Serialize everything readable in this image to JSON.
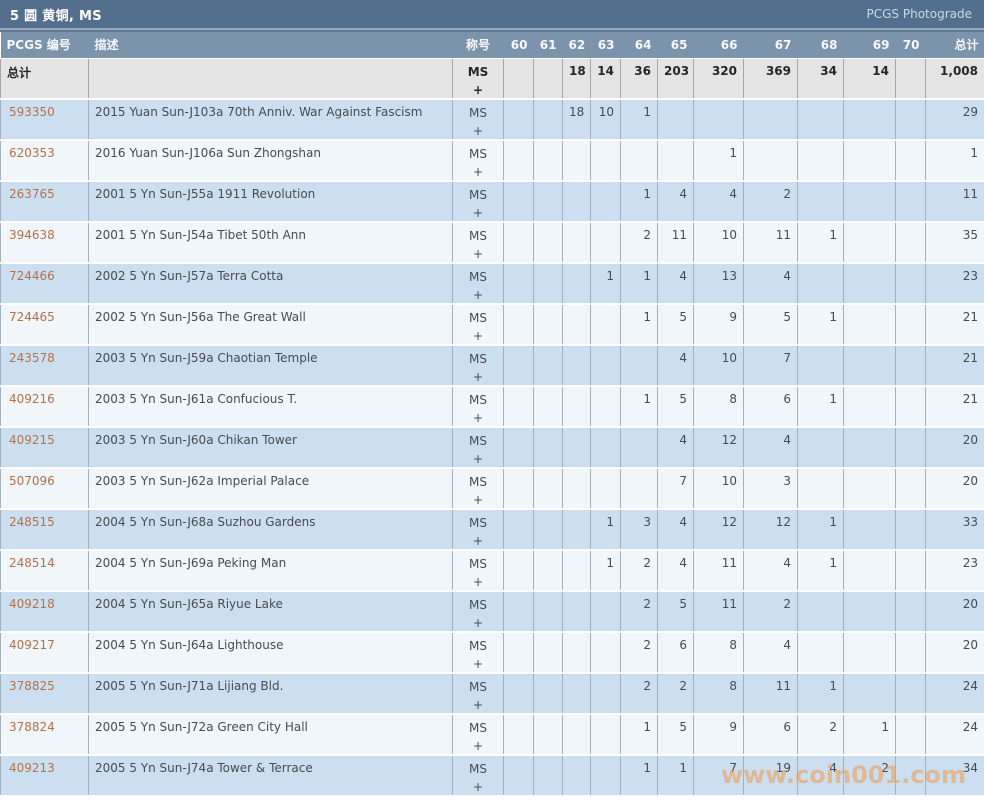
{
  "title_bar": {
    "title": "5 圆 黄铜, MS",
    "photograde_label": "PCGS Photograde"
  },
  "table": {
    "columns": {
      "number": "PCGS 编号",
      "description": "描述",
      "designation": "称号",
      "grades": [
        "60",
        "61",
        "62",
        "63",
        "64",
        "65",
        "66",
        "67",
        "68",
        "69",
        "70"
      ],
      "total": "总计"
    },
    "totals_row": {
      "label": "总计",
      "designation": "MS",
      "plus": "+",
      "grades": [
        "",
        "",
        "18",
        "14",
        "36",
        "203",
        "320",
        "369",
        "34",
        "14",
        ""
      ],
      "total": "1,008"
    },
    "rows": [
      {
        "number": "593350",
        "description": "2015 Yuan Sun-J103a 70th Anniv. War Against Fascism",
        "designation": "MS",
        "plus": "+",
        "grades": [
          "",
          "",
          "18",
          "10",
          "1",
          "",
          "",
          "",
          "",
          "",
          ""
        ],
        "total": "29"
      },
      {
        "number": "620353",
        "description": "2016 Yuan Sun-J106a Sun Zhongshan",
        "designation": "MS",
        "plus": "+",
        "grades": [
          "",
          "",
          "",
          "",
          "",
          "",
          "1",
          "",
          "",
          "",
          ""
        ],
        "total": "1"
      },
      {
        "number": "263765",
        "description": "2001 5 Yn Sun-J55a 1911 Revolution",
        "designation": "MS",
        "plus": "+",
        "grades": [
          "",
          "",
          "",
          "",
          "1",
          "4",
          "4",
          "2",
          "",
          "",
          ""
        ],
        "total": "11"
      },
      {
        "number": "394638",
        "description": "2001 5 Yn Sun-J54a Tibet 50th Ann",
        "designation": "MS",
        "plus": "+",
        "grades": [
          "",
          "",
          "",
          "",
          "2",
          "11",
          "10",
          "11",
          "1",
          "",
          ""
        ],
        "total": "35"
      },
      {
        "number": "724466",
        "description": "2002 5 Yn Sun-J57a Terra Cotta",
        "designation": "MS",
        "plus": "+",
        "grades": [
          "",
          "",
          "",
          "1",
          "1",
          "4",
          "13",
          "4",
          "",
          "",
          ""
        ],
        "total": "23"
      },
      {
        "number": "724465",
        "description": "2002 5 Yn Sun-J56a The Great Wall",
        "designation": "MS",
        "plus": "+",
        "grades": [
          "",
          "",
          "",
          "",
          "1",
          "5",
          "9",
          "5",
          "1",
          "",
          ""
        ],
        "total": "21"
      },
      {
        "number": "243578",
        "description": "2003 5 Yn Sun-J59a Chaotian Temple",
        "designation": "MS",
        "plus": "+",
        "grades": [
          "",
          "",
          "",
          "",
          "",
          "4",
          "10",
          "7",
          "",
          "",
          ""
        ],
        "total": "21"
      },
      {
        "number": "409216",
        "description": "2003 5 Yn Sun-J61a Confucious T.",
        "designation": "MS",
        "plus": "+",
        "grades": [
          "",
          "",
          "",
          "",
          "1",
          "5",
          "8",
          "6",
          "1",
          "",
          ""
        ],
        "total": "21"
      },
      {
        "number": "409215",
        "description": "2003 5 Yn Sun-J60a Chikan Tower",
        "designation": "MS",
        "plus": "+",
        "grades": [
          "",
          "",
          "",
          "",
          "",
          "4",
          "12",
          "4",
          "",
          "",
          ""
        ],
        "total": "20"
      },
      {
        "number": "507096",
        "description": "2003 5 Yn Sun-J62a Imperial Palace",
        "designation": "MS",
        "plus": "+",
        "grades": [
          "",
          "",
          "",
          "",
          "",
          "7",
          "10",
          "3",
          "",
          "",
          ""
        ],
        "total": "20"
      },
      {
        "number": "248515",
        "description": "2004 5 Yn Sun-J68a Suzhou Gardens",
        "designation": "MS",
        "plus": "+",
        "grades": [
          "",
          "",
          "",
          "1",
          "3",
          "4",
          "12",
          "12",
          "1",
          "",
          ""
        ],
        "total": "33"
      },
      {
        "number": "248514",
        "description": "2004 5 Yn Sun-J69a Peking Man",
        "designation": "MS",
        "plus": "+",
        "grades": [
          "",
          "",
          "",
          "1",
          "2",
          "4",
          "11",
          "4",
          "1",
          "",
          ""
        ],
        "total": "23"
      },
      {
        "number": "409218",
        "description": "2004 5 Yn Sun-J65a Riyue Lake",
        "designation": "MS",
        "plus": "+",
        "grades": [
          "",
          "",
          "",
          "",
          "2",
          "5",
          "11",
          "2",
          "",
          "",
          ""
        ],
        "total": "20"
      },
      {
        "number": "409217",
        "description": "2004 5 Yn Sun-J64a Lighthouse",
        "designation": "MS",
        "plus": "+",
        "grades": [
          "",
          "",
          "",
          "",
          "2",
          "6",
          "8",
          "4",
          "",
          "",
          ""
        ],
        "total": "20"
      },
      {
        "number": "378825",
        "description": "2005 5 Yn Sun-J71a Lijiang Bld.",
        "designation": "MS",
        "plus": "+",
        "grades": [
          "",
          "",
          "",
          "",
          "2",
          "2",
          "8",
          "11",
          "1",
          "",
          ""
        ],
        "total": "24"
      },
      {
        "number": "378824",
        "description": "2005 5 Yn Sun-J72a Green City Hall",
        "designation": "MS",
        "plus": "+",
        "grades": [
          "",
          "",
          "",
          "",
          "1",
          "5",
          "9",
          "6",
          "2",
          "1",
          ""
        ],
        "total": "24"
      },
      {
        "number": "409213",
        "description": "2005 5 Yn Sun-J74a Tower & Terrace",
        "designation": "MS",
        "plus": "+",
        "grades": [
          "",
          "",
          "",
          "",
          "1",
          "1",
          "7",
          "19",
          "4",
          "2",
          ""
        ],
        "total": "34"
      }
    ]
  },
  "watermark": "www.coin001.com",
  "colors": {
    "title_bar_bg": "#546f8d",
    "header_row_bg": "#7b94ac",
    "totals_row_bg": "#e4e4e4",
    "stripe_blue": "#cbdff0",
    "stripe_light": "#f0f6fa",
    "link": "#b5714b",
    "watermark": "#f29a4a"
  }
}
